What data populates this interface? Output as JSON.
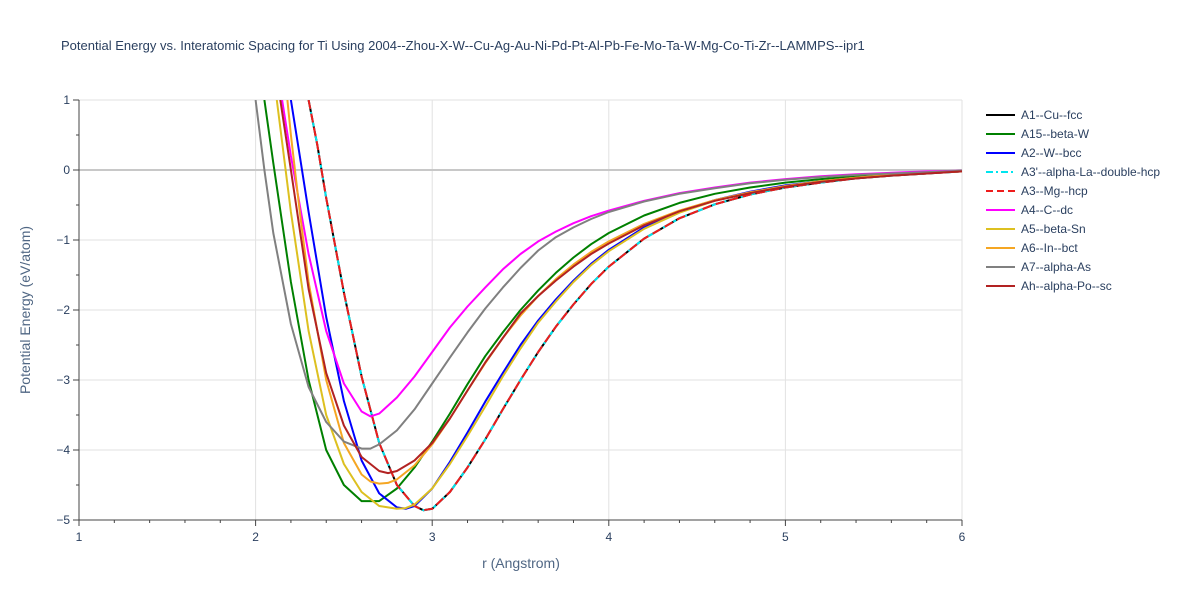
{
  "chart_data": {
    "type": "line",
    "title": "Potential Energy vs. Interatomic Spacing for Ti Using 2004--Zhou-X-W--Cu-Ag-Au-Ni-Pd-Pt-Al-Pb-Fe-Mo-Ta-W-Mg-Co-Ti-Zr--LAMMPS--ipr1",
    "xlabel": "r (Angstrom)",
    "ylabel": "Potential Energy (eV/atom)",
    "xlim": [
      1,
      6
    ],
    "ylim": [
      -5,
      1
    ],
    "xticks": [
      1,
      2,
      3,
      4,
      5,
      6
    ],
    "yticks": [
      1,
      0,
      -1,
      -2,
      -3,
      -4,
      -5
    ],
    "xtick_labels": [
      "1",
      "2",
      "3",
      "4",
      "5",
      "6"
    ],
    "ytick_labels": [
      "1",
      "0",
      "−1",
      "−2",
      "−3",
      "−4",
      "−5"
    ],
    "legend_position": "right",
    "series": [
      {
        "name": "A1--Cu--fcc",
        "color": "#000000",
        "dash": "solid",
        "x": [
          2.3,
          2.35,
          2.4,
          2.5,
          2.6,
          2.7,
          2.8,
          2.9,
          2.95,
          3.0,
          3.1,
          3.2,
          3.3,
          3.4,
          3.5,
          3.6,
          3.7,
          3.8,
          3.9,
          4.0,
          4.2,
          4.4,
          4.6,
          4.8,
          5.0,
          5.2,
          5.4,
          5.6,
          5.8,
          6.0
        ],
        "y": [
          1.0,
          0.35,
          -0.4,
          -1.75,
          -2.95,
          -3.9,
          -4.5,
          -4.8,
          -4.86,
          -4.84,
          -4.6,
          -4.25,
          -3.85,
          -3.42,
          -3.0,
          -2.6,
          -2.24,
          -1.92,
          -1.63,
          -1.38,
          -0.98,
          -0.69,
          -0.49,
          -0.35,
          -0.25,
          -0.18,
          -0.12,
          -0.08,
          -0.05,
          -0.02
        ]
      },
      {
        "name": "A15--beta-W",
        "color": "#008000",
        "dash": "solid",
        "x": [
          2.05,
          2.1,
          2.2,
          2.3,
          2.4,
          2.5,
          2.6,
          2.7,
          2.8,
          2.9,
          3.0,
          3.1,
          3.2,
          3.3,
          3.4,
          3.5,
          3.6,
          3.7,
          3.8,
          3.9,
          4.0,
          4.2,
          4.4,
          4.6,
          4.8,
          5.0,
          5.2,
          5.4,
          5.6,
          5.8,
          6.0
        ],
        "y": [
          1.0,
          0.1,
          -1.6,
          -3.0,
          -4.0,
          -4.5,
          -4.73,
          -4.73,
          -4.55,
          -4.25,
          -3.88,
          -3.48,
          -3.06,
          -2.66,
          -2.32,
          -2.0,
          -1.72,
          -1.47,
          -1.25,
          -1.06,
          -0.9,
          -0.65,
          -0.47,
          -0.34,
          -0.25,
          -0.18,
          -0.13,
          -0.09,
          -0.06,
          -0.03,
          -0.01
        ]
      },
      {
        "name": "A2--W--bcc",
        "color": "#0000ff",
        "dash": "solid",
        "x": [
          2.2,
          2.25,
          2.3,
          2.4,
          2.5,
          2.6,
          2.7,
          2.8,
          2.85,
          2.9,
          3.0,
          3.1,
          3.2,
          3.3,
          3.4,
          3.5,
          3.6,
          3.7,
          3.8,
          3.9,
          4.0,
          4.2,
          4.4,
          4.6,
          4.8,
          5.0,
          5.2,
          5.4,
          5.6,
          5.8,
          6.0
        ],
        "y": [
          1.0,
          0.2,
          -0.6,
          -2.1,
          -3.3,
          -4.15,
          -4.62,
          -4.82,
          -4.84,
          -4.8,
          -4.55,
          -4.17,
          -3.75,
          -3.31,
          -2.9,
          -2.5,
          -2.15,
          -1.85,
          -1.58,
          -1.34,
          -1.14,
          -0.82,
          -0.59,
          -0.43,
          -0.31,
          -0.22,
          -0.16,
          -0.11,
          -0.07,
          -0.04,
          -0.02
        ]
      },
      {
        "name": "A3'--alpha-La--double-hcp",
        "color": "#00e5ee",
        "dash": "dashdot",
        "x": [
          2.3,
          2.35,
          2.4,
          2.5,
          2.6,
          2.7,
          2.8,
          2.9,
          2.95,
          3.0,
          3.1,
          3.2,
          3.3,
          3.4,
          3.5,
          3.6,
          3.7,
          3.8,
          3.9,
          4.0,
          4.2,
          4.4,
          4.6,
          4.8,
          5.0,
          5.2,
          5.4,
          5.6,
          5.8,
          6.0
        ],
        "y": [
          1.0,
          0.35,
          -0.4,
          -1.75,
          -2.95,
          -3.9,
          -4.5,
          -4.8,
          -4.86,
          -4.84,
          -4.6,
          -4.25,
          -3.85,
          -3.42,
          -3.0,
          -2.6,
          -2.24,
          -1.92,
          -1.63,
          -1.38,
          -0.98,
          -0.69,
          -0.49,
          -0.35,
          -0.25,
          -0.18,
          -0.12,
          -0.08,
          -0.05,
          -0.02
        ]
      },
      {
        "name": "A3--Mg--hcp",
        "color": "#ee1c1c",
        "dash": "dash",
        "x": [
          2.3,
          2.35,
          2.4,
          2.5,
          2.6,
          2.7,
          2.8,
          2.9,
          2.95,
          3.0,
          3.1,
          3.2,
          3.3,
          3.4,
          3.5,
          3.6,
          3.7,
          3.8,
          3.9,
          4.0,
          4.2,
          4.4,
          4.6,
          4.8,
          5.0,
          5.2,
          5.4,
          5.6,
          5.8,
          6.0
        ],
        "y": [
          1.0,
          0.35,
          -0.4,
          -1.75,
          -2.95,
          -3.9,
          -4.5,
          -4.8,
          -4.86,
          -4.84,
          -4.6,
          -4.25,
          -3.85,
          -3.42,
          -3.0,
          -2.6,
          -2.24,
          -1.92,
          -1.63,
          -1.38,
          -0.98,
          -0.69,
          -0.49,
          -0.35,
          -0.25,
          -0.18,
          -0.12,
          -0.08,
          -0.05,
          -0.02
        ]
      },
      {
        "name": "A4--C--dc",
        "color": "#ff00ff",
        "dash": "solid",
        "x": [
          2.15,
          2.2,
          2.3,
          2.4,
          2.5,
          2.6,
          2.65,
          2.7,
          2.8,
          2.9,
          3.0,
          3.1,
          3.2,
          3.3,
          3.4,
          3.5,
          3.6,
          3.7,
          3.8,
          3.9,
          4.0,
          4.2,
          4.4,
          4.6,
          4.8,
          5.0,
          5.2,
          5.4,
          5.6,
          5.8,
          6.0
        ],
        "y": [
          1.0,
          0.2,
          -1.2,
          -2.3,
          -3.05,
          -3.45,
          -3.52,
          -3.48,
          -3.25,
          -2.95,
          -2.6,
          -2.25,
          -1.95,
          -1.68,
          -1.42,
          -1.2,
          -1.02,
          -0.88,
          -0.76,
          -0.66,
          -0.58,
          -0.44,
          -0.33,
          -0.25,
          -0.18,
          -0.13,
          -0.09,
          -0.06,
          -0.04,
          -0.02,
          -0.01
        ]
      },
      {
        "name": "A5--beta-Sn",
        "color": "#ddc020",
        "dash": "solid",
        "x": [
          2.12,
          2.15,
          2.2,
          2.3,
          2.4,
          2.5,
          2.6,
          2.7,
          2.8,
          2.85,
          2.9,
          3.0,
          3.1,
          3.2,
          3.3,
          3.4,
          3.5,
          3.6,
          3.7,
          3.8,
          3.9,
          4.0,
          4.2,
          4.4,
          4.6,
          4.8,
          5.0,
          5.2,
          5.4,
          5.6,
          5.8,
          6.0
        ],
        "y": [
          1.0,
          0.4,
          -0.6,
          -2.3,
          -3.5,
          -4.2,
          -4.6,
          -4.8,
          -4.84,
          -4.83,
          -4.78,
          -4.55,
          -4.2,
          -3.8,
          -3.38,
          -2.95,
          -2.55,
          -2.18,
          -1.88,
          -1.6,
          -1.36,
          -1.16,
          -0.84,
          -0.61,
          -0.44,
          -0.32,
          -0.23,
          -0.16,
          -0.11,
          -0.07,
          -0.04,
          -0.02
        ]
      },
      {
        "name": "A6--In--bct",
        "color": "#f5a623",
        "dash": "solid",
        "x": [
          2.18,
          2.2,
          2.25,
          2.3,
          2.4,
          2.5,
          2.6,
          2.65,
          2.7,
          2.75,
          2.8,
          2.9,
          3.0,
          3.1,
          3.2,
          3.3,
          3.4,
          3.5,
          3.6,
          3.7,
          3.8,
          3.9,
          4.0,
          4.2,
          4.4,
          4.6,
          4.8,
          5.0,
          5.2,
          5.4,
          5.6,
          5.8,
          6.0
        ],
        "y": [
          1.0,
          0.5,
          -0.6,
          -1.6,
          -3.0,
          -3.9,
          -4.35,
          -4.45,
          -4.48,
          -4.47,
          -4.42,
          -4.22,
          -3.92,
          -3.55,
          -3.15,
          -2.76,
          -2.4,
          -2.08,
          -1.8,
          -1.56,
          -1.35,
          -1.17,
          -1.02,
          -0.77,
          -0.58,
          -0.43,
          -0.32,
          -0.23,
          -0.16,
          -0.11,
          -0.07,
          -0.04,
          -0.02
        ]
      },
      {
        "name": "A7--alpha-As",
        "color": "#808080",
        "dash": "solid",
        "x": [
          2.0,
          2.05,
          2.1,
          2.2,
          2.3,
          2.4,
          2.5,
          2.6,
          2.65,
          2.7,
          2.8,
          2.9,
          3.0,
          3.1,
          3.2,
          3.3,
          3.4,
          3.5,
          3.6,
          3.7,
          3.8,
          3.9,
          4.0,
          4.2,
          4.4,
          4.6,
          4.8,
          5.0,
          5.2,
          5.4,
          5.6,
          5.8,
          6.0
        ],
        "y": [
          1.0,
          0.0,
          -0.9,
          -2.2,
          -3.1,
          -3.6,
          -3.88,
          -3.98,
          -3.98,
          -3.92,
          -3.72,
          -3.42,
          -3.05,
          -2.68,
          -2.32,
          -1.98,
          -1.68,
          -1.4,
          -1.15,
          -0.96,
          -0.82,
          -0.7,
          -0.6,
          -0.45,
          -0.34,
          -0.26,
          -0.19,
          -0.14,
          -0.1,
          -0.07,
          -0.05,
          -0.03,
          -0.01
        ]
      },
      {
        "name": "Ah--alpha-Po--sc",
        "color": "#b22222",
        "dash": "solid",
        "x": [
          2.14,
          2.2,
          2.3,
          2.4,
          2.5,
          2.6,
          2.7,
          2.75,
          2.8,
          2.9,
          3.0,
          3.1,
          3.2,
          3.3,
          3.4,
          3.5,
          3.6,
          3.7,
          3.8,
          3.9,
          4.0,
          4.2,
          4.4,
          4.6,
          4.8,
          5.0,
          5.2,
          5.4,
          5.6,
          5.8,
          6.0
        ],
        "y": [
          1.0,
          0.0,
          -1.7,
          -2.9,
          -3.65,
          -4.1,
          -4.3,
          -4.33,
          -4.3,
          -4.15,
          -3.9,
          -3.55,
          -3.15,
          -2.75,
          -2.4,
          -2.05,
          -1.8,
          -1.58,
          -1.38,
          -1.2,
          -1.05,
          -0.79,
          -0.59,
          -0.44,
          -0.33,
          -0.24,
          -0.17,
          -0.12,
          -0.08,
          -0.05,
          -0.02
        ]
      }
    ]
  }
}
